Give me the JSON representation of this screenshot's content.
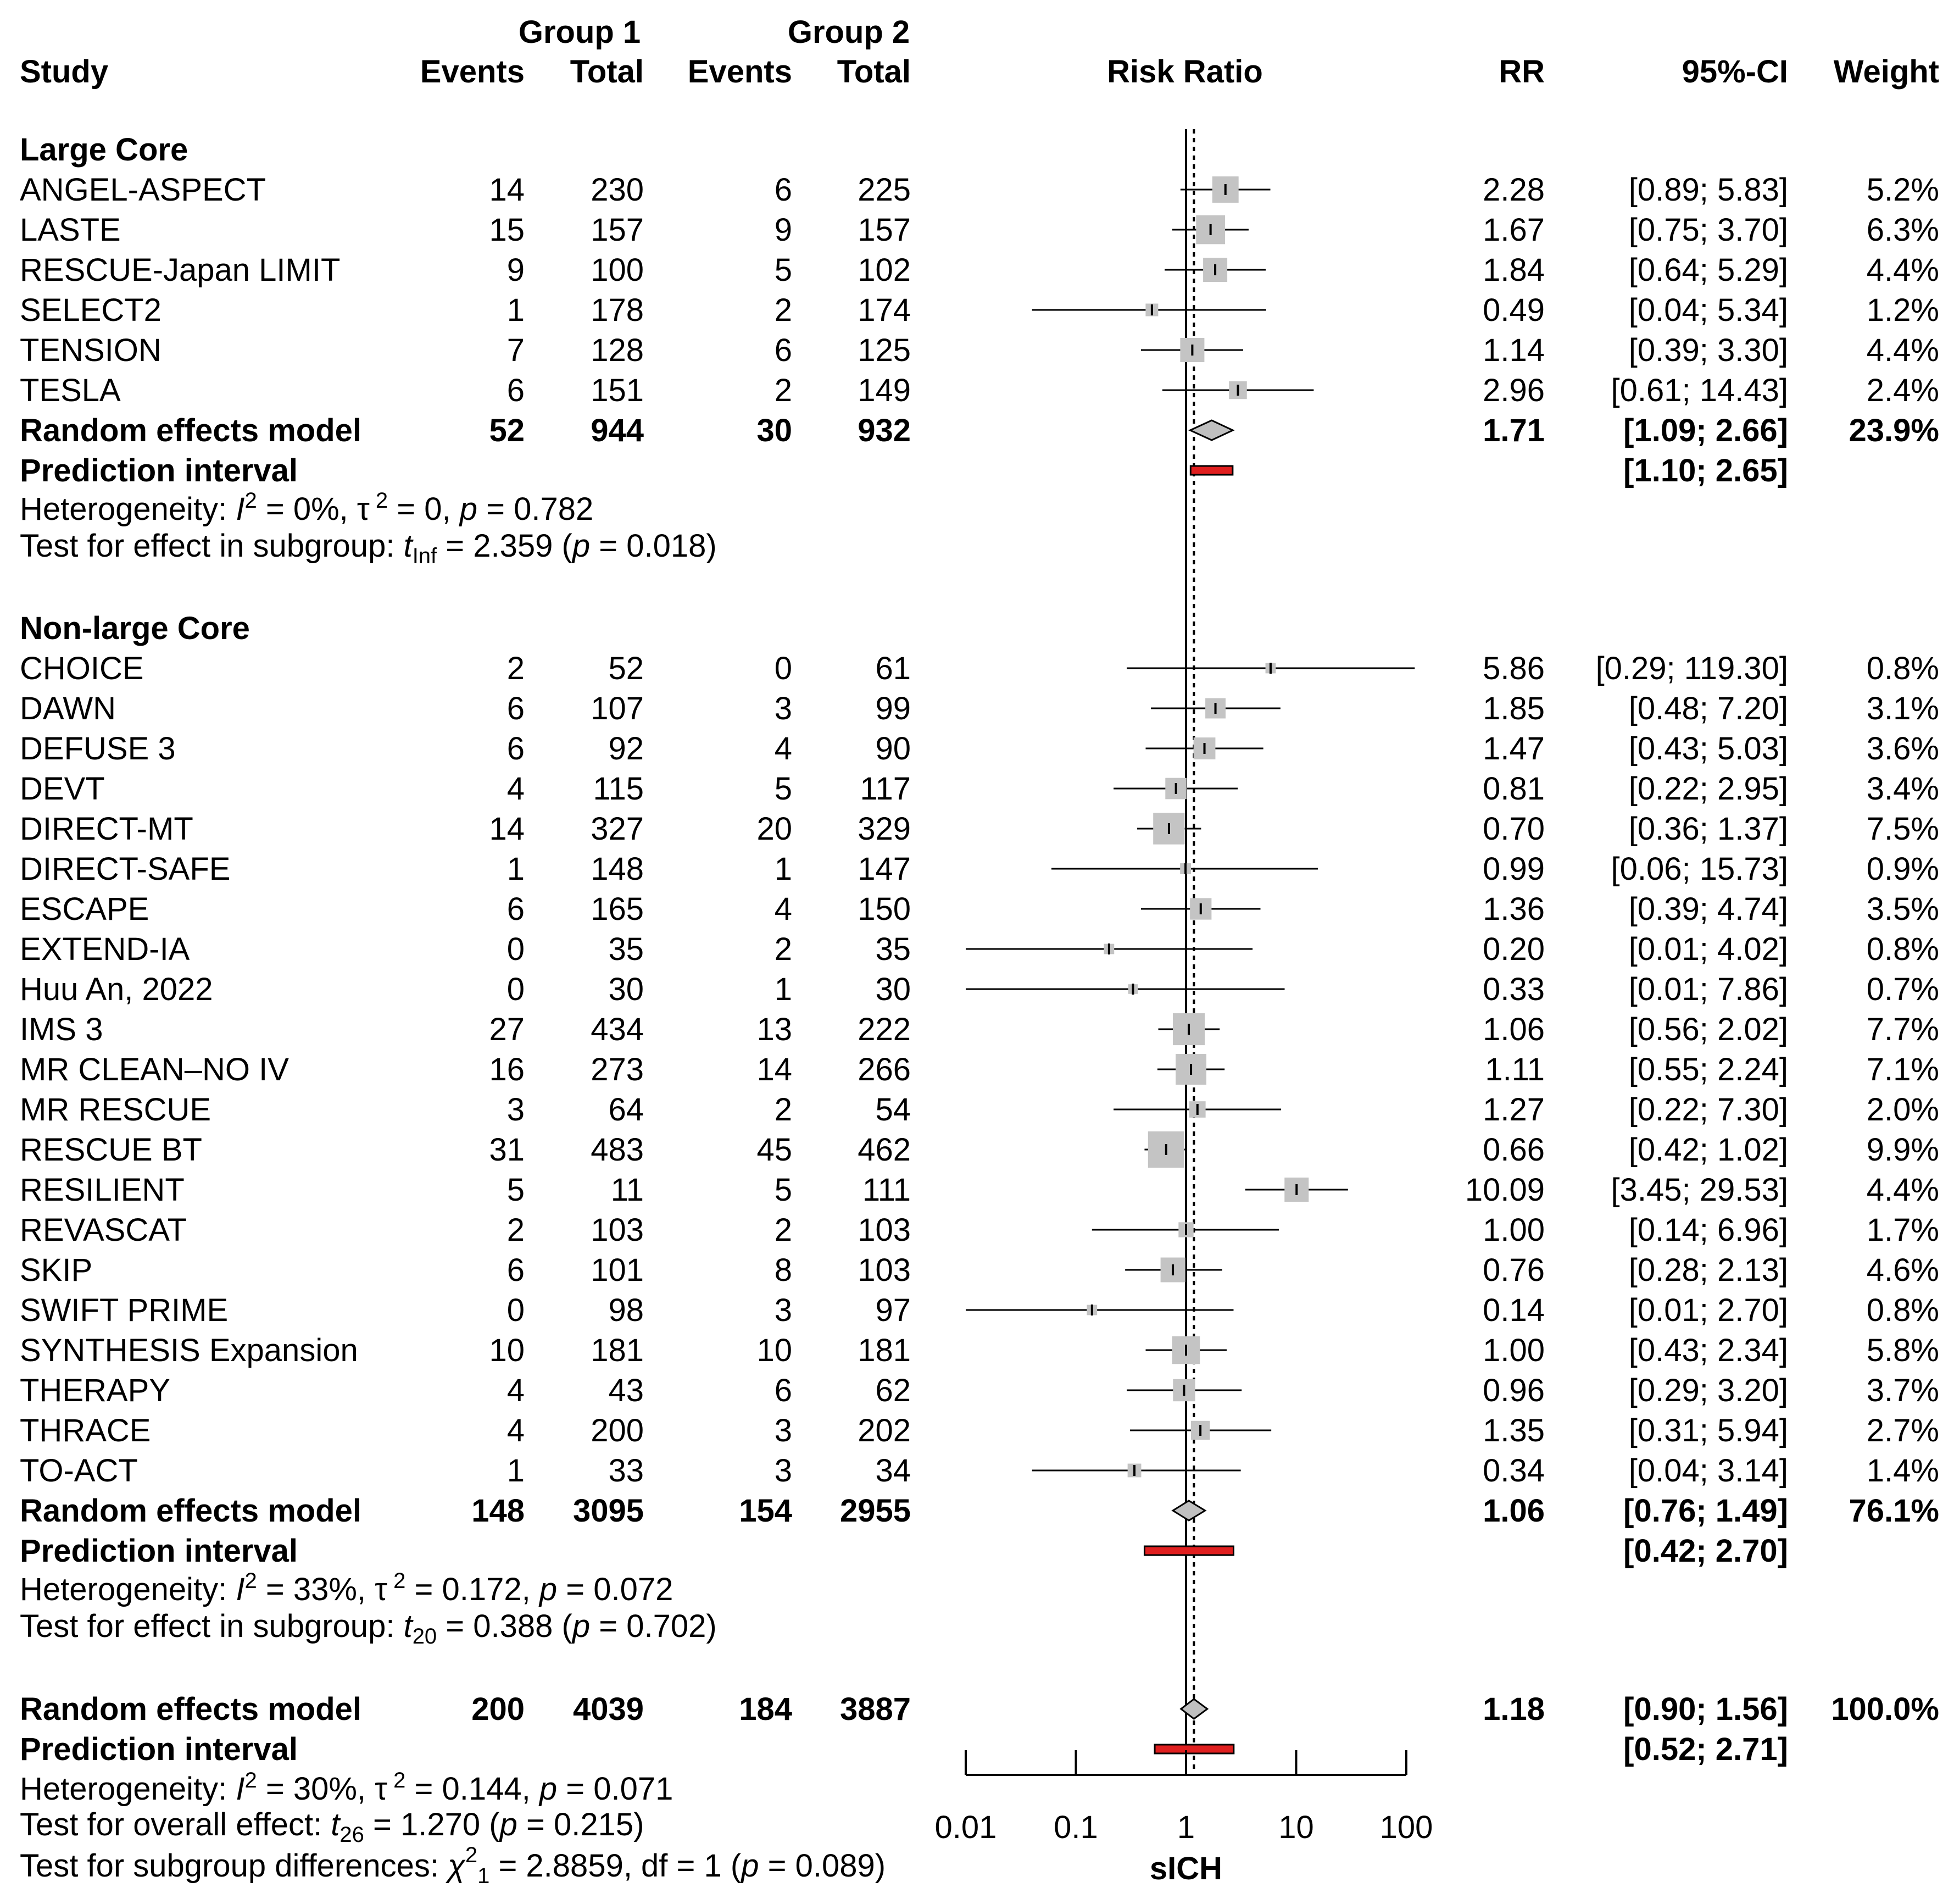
{
  "chart_data": {
    "type": "forest",
    "header": {
      "study": "Study",
      "group1": "Group 1",
      "group2": "Group 2",
      "events": "Events",
      "total": "Total",
      "risk_ratio": "Risk Ratio",
      "rr": "RR",
      "ci": "95%-CI",
      "weight": "Weight"
    },
    "xaxis": {
      "label": "sICH",
      "scale": "log",
      "ticks": [
        0.01,
        0.1,
        1,
        10,
        100
      ],
      "tick_labels": [
        "0.01",
        "0.1",
        "1",
        "10",
        "100"
      ],
      "range": [
        0.01,
        100
      ],
      "null_value": 1,
      "pooled_reference": 1.18
    },
    "colors": {
      "box": "#c4c4c4",
      "prediction": "#e01f1f",
      "diamond": "#c0c0c0"
    },
    "subgroups": [
      {
        "name": "Large Core",
        "studies": [
          {
            "study": "ANGEL-ASPECT",
            "e1": "14",
            "n1": "230",
            "e2": "6",
            "n2": "225",
            "rr": 2.28,
            "lo": 0.89,
            "hi": 5.83,
            "rr_text": "2.28",
            "ci_text": "[0.89;  5.83]",
            "w": 5.2,
            "weight_text": "5.2%"
          },
          {
            "study": "LASTE",
            "e1": "15",
            "n1": "157",
            "e2": "9",
            "n2": "157",
            "rr": 1.67,
            "lo": 0.75,
            "hi": 3.7,
            "rr_text": "1.67",
            "ci_text": "[0.75;  3.70]",
            "w": 6.3,
            "weight_text": "6.3%"
          },
          {
            "study": "RESCUE-Japan LIMIT",
            "e1": "9",
            "n1": "100",
            "e2": "5",
            "n2": "102",
            "rr": 1.84,
            "lo": 0.64,
            "hi": 5.29,
            "rr_text": "1.84",
            "ci_text": "[0.64;  5.29]",
            "w": 4.4,
            "weight_text": "4.4%"
          },
          {
            "study": "SELECT2",
            "e1": "1",
            "n1": "178",
            "e2": "2",
            "n2": "174",
            "rr": 0.49,
            "lo": 0.04,
            "hi": 5.34,
            "rr_text": "0.49",
            "ci_text": "[0.04;  5.34]",
            "w": 1.2,
            "weight_text": "1.2%"
          },
          {
            "study": "TENSION",
            "e1": "7",
            "n1": "128",
            "e2": "6",
            "n2": "125",
            "rr": 1.14,
            "lo": 0.39,
            "hi": 3.3,
            "rr_text": "1.14",
            "ci_text": "[0.39;  3.30]",
            "w": 4.4,
            "weight_text": "4.4%"
          },
          {
            "study": "TESLA",
            "e1": "6",
            "n1": "151",
            "e2": "2",
            "n2": "149",
            "rr": 2.96,
            "lo": 0.61,
            "hi": 14.43,
            "rr_text": "2.96",
            "ci_text": "[0.61;  14.43]",
            "w": 2.4,
            "weight_text": "2.4%"
          }
        ],
        "model": {
          "label": "Random effects model",
          "e1": "52",
          "n1": "944",
          "e2": "30",
          "n2": "932",
          "rr": 1.71,
          "lo": 1.09,
          "hi": 2.66,
          "rr_text": "1.71",
          "ci_text": "[1.09;  2.66]",
          "weight_text": "23.9%"
        },
        "prediction": {
          "label": "Prediction interval",
          "lo": 1.1,
          "hi": 2.65,
          "ci_text": "[1.10;  2.65]"
        },
        "heterogeneity": {
          "prefix": "Heterogeneity: ",
          "i2": "I",
          "eq1": " = 0%, ",
          "tau": "τ",
          "eq2": " = 0, ",
          "p": "p",
          "eq3": " = 0.782"
        },
        "test": {
          "prefix": "Test for effect in subgroup: ",
          "t": "t",
          "sub": "Inf",
          "eq": " = 2.359 (",
          "p": "p",
          "tail": " = 0.018)"
        }
      },
      {
        "name": "Non-large Core",
        "studies": [
          {
            "study": "CHOICE",
            "e1": "2",
            "n1": "52",
            "e2": "0",
            "n2": "61",
            "rr": 5.86,
            "lo": 0.29,
            "hi": 119.3,
            "rr_text": "5.86",
            "ci_text": "[0.29; 119.30]",
            "w": 0.8,
            "weight_text": "0.8%"
          },
          {
            "study": "DAWN",
            "e1": "6",
            "n1": "107",
            "e2": "3",
            "n2": "99",
            "rr": 1.85,
            "lo": 0.48,
            "hi": 7.2,
            "rr_text": "1.85",
            "ci_text": "[0.48;  7.20]",
            "w": 3.1,
            "weight_text": "3.1%"
          },
          {
            "study": "DEFUSE 3",
            "e1": "6",
            "n1": "92",
            "e2": "4",
            "n2": "90",
            "rr": 1.47,
            "lo": 0.43,
            "hi": 5.03,
            "rr_text": "1.47",
            "ci_text": "[0.43;  5.03]",
            "w": 3.6,
            "weight_text": "3.6%"
          },
          {
            "study": "DEVT",
            "e1": "4",
            "n1": "115",
            "e2": "5",
            "n2": "117",
            "rr": 0.81,
            "lo": 0.22,
            "hi": 2.95,
            "rr_text": "0.81",
            "ci_text": "[0.22;  2.95]",
            "w": 3.4,
            "weight_text": "3.4%"
          },
          {
            "study": "DIRECT-MT",
            "e1": "14",
            "n1": "327",
            "e2": "20",
            "n2": "329",
            "rr": 0.7,
            "lo": 0.36,
            "hi": 1.37,
            "rr_text": "0.70",
            "ci_text": "[0.36;  1.37]",
            "w": 7.5,
            "weight_text": "7.5%"
          },
          {
            "study": "DIRECT-SAFE",
            "e1": "1",
            "n1": "148",
            "e2": "1",
            "n2": "147",
            "rr": 0.99,
            "lo": 0.06,
            "hi": 15.73,
            "rr_text": "0.99",
            "ci_text": "[0.06;  15.73]",
            "w": 0.9,
            "weight_text": "0.9%"
          },
          {
            "study": "ESCAPE",
            "e1": "6",
            "n1": "165",
            "e2": "4",
            "n2": "150",
            "rr": 1.36,
            "lo": 0.39,
            "hi": 4.74,
            "rr_text": "1.36",
            "ci_text": "[0.39;  4.74]",
            "w": 3.5,
            "weight_text": "3.5%"
          },
          {
            "study": "EXTEND-IA",
            "e1": "0",
            "n1": "35",
            "e2": "2",
            "n2": "35",
            "rr": 0.2,
            "lo": 0.01,
            "hi": 4.02,
            "rr_text": "0.20",
            "ci_text": "[0.01;  4.02]",
            "w": 0.8,
            "weight_text": "0.8%"
          },
          {
            "study": "Huu An, 2022",
            "e1": "0",
            "n1": "30",
            "e2": "1",
            "n2": "30",
            "rr": 0.33,
            "lo": 0.01,
            "hi": 7.86,
            "rr_text": "0.33",
            "ci_text": "[0.01;  7.86]",
            "w": 0.7,
            "weight_text": "0.7%"
          },
          {
            "study": "IMS 3",
            "e1": "27",
            "n1": "434",
            "e2": "13",
            "n2": "222",
            "rr": 1.06,
            "lo": 0.56,
            "hi": 2.02,
            "rr_text": "1.06",
            "ci_text": "[0.56;  2.02]",
            "w": 7.7,
            "weight_text": "7.7%"
          },
          {
            "study": "MR CLEAN–NO IV",
            "e1": "16",
            "n1": "273",
            "e2": "14",
            "n2": "266",
            "rr": 1.11,
            "lo": 0.55,
            "hi": 2.24,
            "rr_text": "1.11",
            "ci_text": "[0.55;  2.24]",
            "w": 7.1,
            "weight_text": "7.1%"
          },
          {
            "study": "MR RESCUE",
            "e1": "3",
            "n1": "64",
            "e2": "2",
            "n2": "54",
            "rr": 1.27,
            "lo": 0.22,
            "hi": 7.3,
            "rr_text": "1.27",
            "ci_text": "[0.22;  7.30]",
            "w": 2.0,
            "weight_text": "2.0%"
          },
          {
            "study": "RESCUE BT",
            "e1": "31",
            "n1": "483",
            "e2": "45",
            "n2": "462",
            "rr": 0.66,
            "lo": 0.42,
            "hi": 1.02,
            "rr_text": "0.66",
            "ci_text": "[0.42;  1.02]",
            "w": 9.9,
            "weight_text": "9.9%"
          },
          {
            "study": "RESILIENT",
            "e1": "5",
            "n1": "11",
            "e2": "5",
            "n2": "111",
            "rr": 10.09,
            "lo": 3.45,
            "hi": 29.53,
            "rr_text": "10.09",
            "ci_text": "[3.45;  29.53]",
            "w": 4.4,
            "weight_text": "4.4%"
          },
          {
            "study": "REVASCAT",
            "e1": "2",
            "n1": "103",
            "e2": "2",
            "n2": "103",
            "rr": 1.0,
            "lo": 0.14,
            "hi": 6.96,
            "rr_text": "1.00",
            "ci_text": "[0.14;  6.96]",
            "w": 1.7,
            "weight_text": "1.7%"
          },
          {
            "study": "SKIP",
            "e1": "6",
            "n1": "101",
            "e2": "8",
            "n2": "103",
            "rr": 0.76,
            "lo": 0.28,
            "hi": 2.13,
            "rr_text": "0.76",
            "ci_text": "[0.28;  2.13]",
            "w": 4.6,
            "weight_text": "4.6%"
          },
          {
            "study": "SWIFT PRIME",
            "e1": "0",
            "n1": "98",
            "e2": "3",
            "n2": "97",
            "rr": 0.14,
            "lo": 0.01,
            "hi": 2.7,
            "rr_text": "0.14",
            "ci_text": "[0.01;  2.70]",
            "w": 0.8,
            "weight_text": "0.8%"
          },
          {
            "study": "SYNTHESIS Expansion",
            "e1": "10",
            "n1": "181",
            "e2": "10",
            "n2": "181",
            "rr": 1.0,
            "lo": 0.43,
            "hi": 2.34,
            "rr_text": "1.00",
            "ci_text": "[0.43;  2.34]",
            "w": 5.8,
            "weight_text": "5.8%"
          },
          {
            "study": "THERAPY",
            "e1": "4",
            "n1": "43",
            "e2": "6",
            "n2": "62",
            "rr": 0.96,
            "lo": 0.29,
            "hi": 3.2,
            "rr_text": "0.96",
            "ci_text": "[0.29;  3.20]",
            "w": 3.7,
            "weight_text": "3.7%"
          },
          {
            "study": "THRACE",
            "e1": "4",
            "n1": "200",
            "e2": "3",
            "n2": "202",
            "rr": 1.35,
            "lo": 0.31,
            "hi": 5.94,
            "rr_text": "1.35",
            "ci_text": "[0.31;  5.94]",
            "w": 2.7,
            "weight_text": "2.7%"
          },
          {
            "study": "TO-ACT",
            "e1": "1",
            "n1": "33",
            "e2": "3",
            "n2": "34",
            "rr": 0.34,
            "lo": 0.04,
            "hi": 3.14,
            "rr_text": "0.34",
            "ci_text": "[0.04;  3.14]",
            "w": 1.4,
            "weight_text": "1.4%"
          }
        ],
        "model": {
          "label": "Random effects model",
          "e1": "148",
          "n1": "3095",
          "e2": "154",
          "n2": "2955",
          "rr": 1.06,
          "lo": 0.76,
          "hi": 1.49,
          "rr_text": "1.06",
          "ci_text": "[0.76;  1.49]",
          "weight_text": "76.1%"
        },
        "prediction": {
          "label": "Prediction interval",
          "lo": 0.42,
          "hi": 2.7,
          "ci_text": "[0.42;  2.70]"
        },
        "heterogeneity": {
          "prefix": "Heterogeneity: ",
          "i2": "I",
          "eq1": " = 33%, ",
          "tau": "τ",
          "eq2": " = 0.172, ",
          "p": "p",
          "eq3": " = 0.072"
        },
        "test": {
          "prefix": "Test for effect in subgroup: ",
          "t": "t",
          "sub": "20",
          "eq": " = 0.388 (",
          "p": "p",
          "tail": " = 0.702)"
        }
      }
    ],
    "overall": {
      "model": {
        "label": "Random effects model",
        "e1": "200",
        "n1": "4039",
        "e2": "184",
        "n2": "3887",
        "rr": 1.18,
        "lo": 0.9,
        "hi": 1.56,
        "rr_text": "1.18",
        "ci_text": "[0.90;  1.56]",
        "weight_text": "100.0%"
      },
      "prediction": {
        "label": "Prediction interval",
        "lo": 0.52,
        "hi": 2.71,
        "ci_text": "[0.52;  2.71]"
      },
      "heterogeneity": {
        "prefix": "Heterogeneity: ",
        "i2": "I",
        "eq1": " = 30%, ",
        "tau": "τ",
        "eq2": " = 0.144, ",
        "p": "p",
        "eq3": " = 0.071"
      },
      "test_overall": {
        "prefix": "Test for overall effect: ",
        "t": "t",
        "sub": "26",
        "eq": " = 1.270 (",
        "p": "p",
        "tail": " = 0.215)"
      },
      "test_subgroup": {
        "prefix": "Test for subgroup differences: ",
        "chi": "χ",
        "sub": "1",
        "eq": " = 2.8859, df = 1 (",
        "p": "p",
        "tail": " = 0.089)"
      }
    }
  }
}
